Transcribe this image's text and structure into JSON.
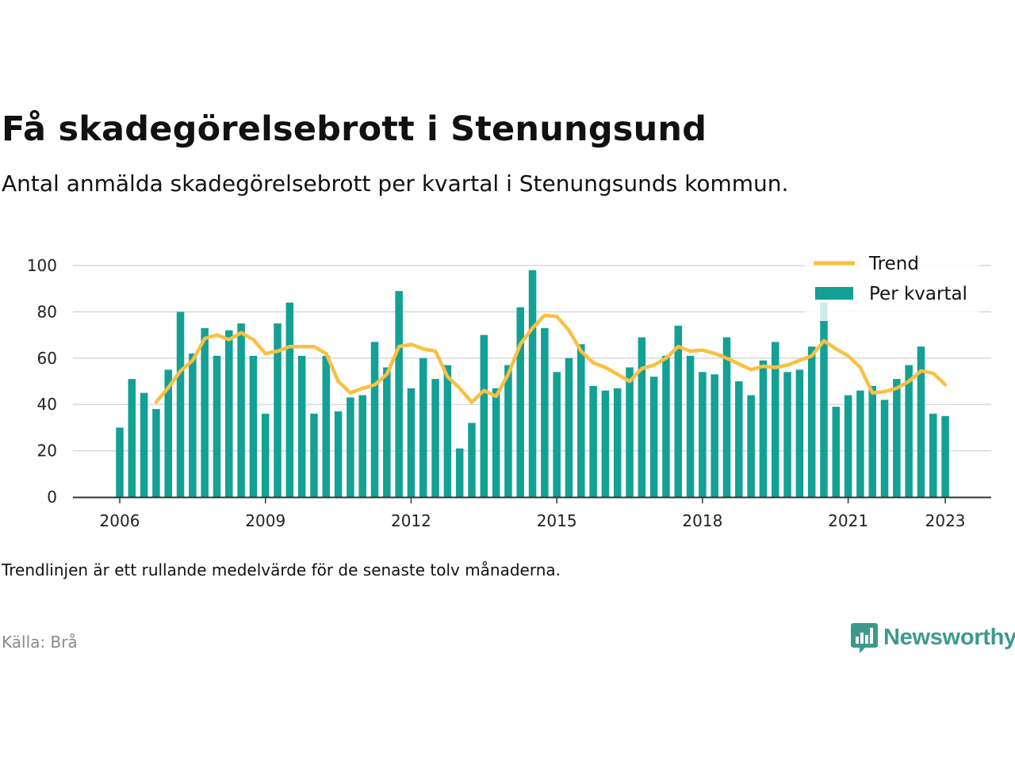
{
  "header": {
    "title": "Få skadegörelsebrott i Stenungsund",
    "subtitle": "Antal anmälda skadegörelsebrott per kvartal i Stenungsunds kommun."
  },
  "footer": {
    "note": "Trendlinjen är ett rullande medelvärde för de senaste tolv månaderna.",
    "source": "Källa: Brå",
    "brand": "Newsworthy"
  },
  "colors": {
    "bars": "#13a095",
    "trend": "#f9c043",
    "grid": "#d9d9d9",
    "axis": "#333333",
    "brand": "#3d9a8b"
  },
  "chart_data": {
    "type": "bar",
    "title": "Få skadegörelsebrott i Stenungsund",
    "xlabel": "",
    "ylabel": "",
    "ylim": [
      0,
      100
    ],
    "yticks": [
      "0",
      "20",
      "40",
      "60",
      "80",
      "100"
    ],
    "xticks": [
      "2006",
      "2009",
      "2012",
      "2015",
      "2018",
      "2021",
      "2023"
    ],
    "grid": true,
    "legend_position": "top-right",
    "quarter_labels": [
      "2006 Q1",
      "2006 Q2",
      "2006 Q3",
      "2006 Q4",
      "2007 Q1",
      "2007 Q2",
      "2007 Q3",
      "2007 Q4",
      "2008 Q1",
      "2008 Q2",
      "2008 Q3",
      "2008 Q4",
      "2009 Q1",
      "2009 Q2",
      "2009 Q3",
      "2009 Q4",
      "2010 Q1",
      "2010 Q2",
      "2010 Q3",
      "2010 Q4",
      "2011 Q1",
      "2011 Q2",
      "2011 Q3",
      "2011 Q4",
      "2012 Q1",
      "2012 Q2",
      "2012 Q3",
      "2012 Q4",
      "2013 Q1",
      "2013 Q2",
      "2013 Q3",
      "2013 Q4",
      "2014 Q1",
      "2014 Q2",
      "2014 Q3",
      "2014 Q4",
      "2015 Q1",
      "2015 Q2",
      "2015 Q3",
      "2015 Q4",
      "2016 Q1",
      "2016 Q2",
      "2016 Q3",
      "2016 Q4",
      "2017 Q1",
      "2017 Q2",
      "2017 Q3",
      "2017 Q4",
      "2018 Q1",
      "2018 Q2",
      "2018 Q3",
      "2018 Q4",
      "2019 Q1",
      "2019 Q2",
      "2019 Q3",
      "2019 Q4",
      "2020 Q1",
      "2020 Q2",
      "2020 Q3",
      "2020 Q4",
      "2021 Q1",
      "2021 Q2",
      "2021 Q3",
      "2021 Q4",
      "2022 Q1",
      "2022 Q2",
      "2022 Q3",
      "2022 Q4",
      "2023 Q1"
    ],
    "series": [
      {
        "name": "Per kvartal",
        "type": "bar",
        "values": [
          30,
          51,
          45,
          38,
          55,
          80,
          62,
          73,
          61,
          72,
          75,
          61,
          36,
          75,
          84,
          61,
          36,
          61,
          37,
          43,
          44,
          67,
          56,
          89,
          47,
          60,
          51,
          57,
          21,
          32,
          70,
          47,
          57,
          82,
          98,
          73,
          54,
          60,
          66,
          48,
          46,
          47,
          56,
          69,
          52,
          61,
          74,
          61,
          54,
          53,
          69,
          50,
          44,
          59,
          67,
          54,
          55,
          65,
          84,
          39,
          44,
          46,
          48,
          42,
          51,
          57,
          65,
          36,
          35
        ]
      },
      {
        "name": "Trend",
        "type": "line",
        "values": [
          null,
          null,
          null,
          41.0,
          47.25,
          54.5,
          59.0,
          68.5,
          70.0,
          68.0,
          71.0,
          68.0,
          62.0,
          63.0,
          65.0,
          65.0,
          65.0,
          62.0,
          50.0,
          45.0,
          47.0,
          48.5,
          53.0,
          65.0,
          66.0,
          64.0,
          63.0,
          52.0,
          47.0,
          41.0,
          46.0,
          43.5,
          53.0,
          66.0,
          73.0,
          78.5,
          78.0,
          72.0,
          63.0,
          58.0,
          56.0,
          53.0,
          50.0,
          55.5,
          57.0,
          60.0,
          65.0,
          63.0,
          63.5,
          62.0,
          60.0,
          57.5,
          55.0,
          56.5,
          56.0,
          57.0,
          59.0,
          61.0,
          67.5,
          64.0,
          61.0,
          56.0,
          45.0,
          45.5,
          47.0,
          50.0,
          54.5,
          53.5,
          48.5
        ]
      }
    ]
  }
}
